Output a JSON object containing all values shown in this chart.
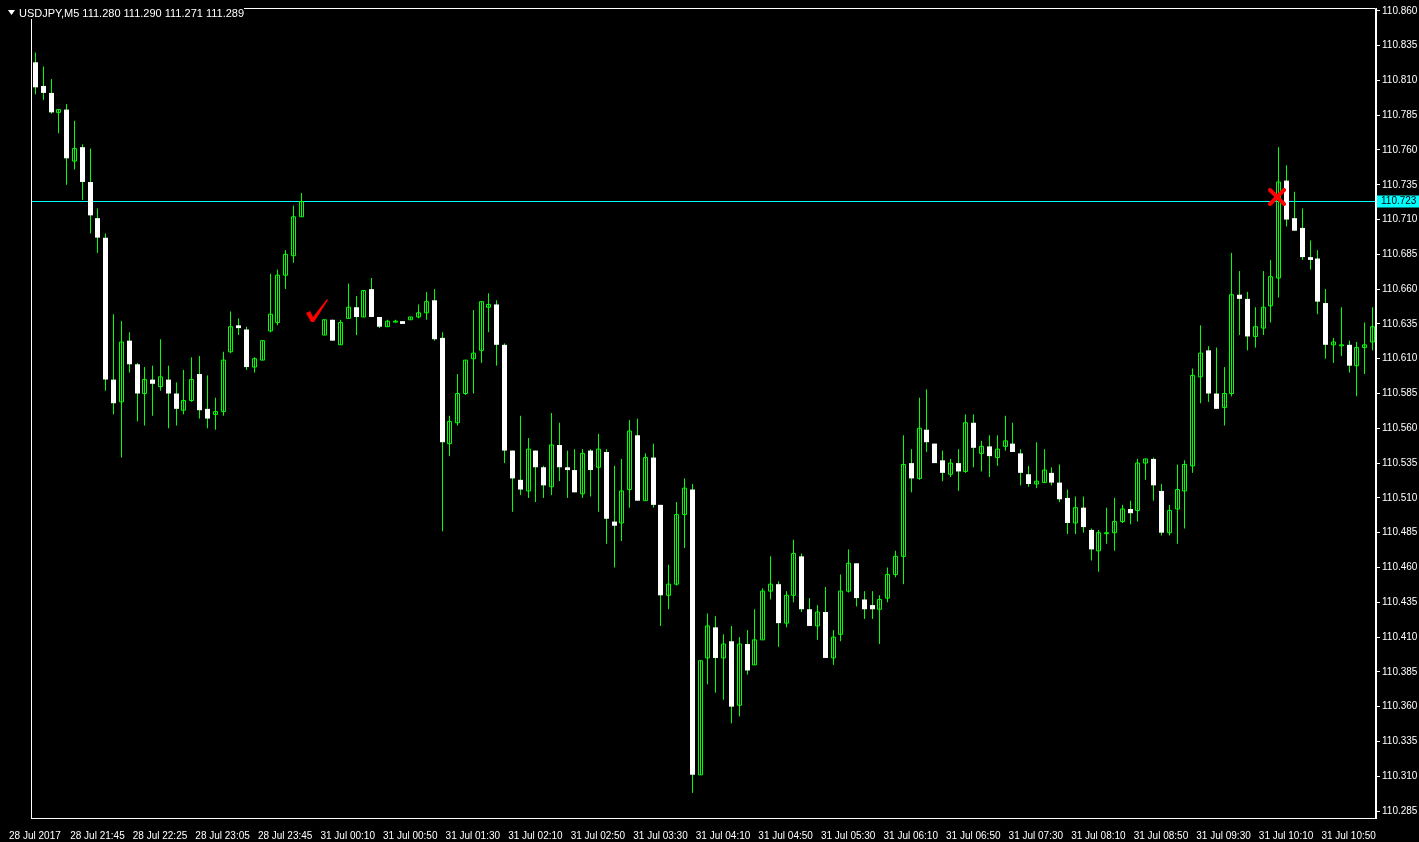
{
  "chart_data": {
    "type": "candlestick",
    "title": "USDJPY,M5 111.280 111.290 111.271 111.289",
    "color": "#00ff00",
    "colors": [
      "#ffffff",
      "#ffffff",
      "#ffffff",
      "#00ff00",
      "#ffffff",
      "#00ff00",
      "#ffffff",
      "#ffffff",
      "#ffffff",
      "#ffffff",
      "#ffffff",
      "#00ff00",
      "#ffffff",
      "#ffffff",
      "#00ff00",
      "#ffffff",
      "#00ff00",
      "#ffffff",
      "#ffffff",
      "#00ff00",
      "#00ff00",
      "#ffffff",
      "#ffffff",
      "#00ff00",
      "#00ff00",
      "#00ff00",
      "#ffffff",
      "#ffffff",
      "#00ff00",
      "#00ff00",
      "#00ff00",
      "#00ff00",
      "#00ff00",
      "#00ff00",
      "#00ff00",
      null,
      null,
      "#00ff00",
      "#ffffff",
      "#00ff00",
      "#00ff00",
      "#ffffff",
      "#00ff00",
      "#ffffff",
      "#ffffff",
      "#00ff00",
      "#00ff00",
      "#ffffff",
      "#00ff00",
      "#00ff00",
      "#00ff00",
      "#ffffff",
      "#ffffff",
      "#00ff00",
      "#00ff00",
      "#00ff00",
      "#00ff00",
      "#00ff00",
      "#00ff00",
      "#ffffff",
      "#ffffff",
      "#ffffff",
      "#ffffff",
      "#00ff00",
      "#ffffff",
      "#ffffff",
      "#00ff00",
      "#ffffff",
      "#ffffff",
      "#ffffff",
      "#00ff00",
      "#ffffff",
      "#00ff00",
      "#ffffff",
      "#ffffff",
      "#00ff00",
      "#00ff00",
      "#ffffff",
      "#00ff00",
      "#ffffff",
      "#ffffff",
      "#00ff00",
      "#00ff00",
      "#00ff00",
      "#ffffff",
      "#00ff00",
      "#00ff00",
      "#ffffff",
      "#00ff00",
      "#ffffff",
      "#00ff00",
      "#ffffff",
      "#00ff00",
      "#00ff00",
      "#00ff00",
      "#ffffff",
      "#00ff00",
      "#00ff00",
      "#ffffff",
      "#ffffff",
      "#00ff00",
      "#ffffff",
      "#00ff00",
      "#00ff00",
      "#00ff00",
      "#ffffff",
      "#ffffff",
      "#ffffff",
      "#00ff00",
      "#00ff00",
      "#00ff00",
      "#00ff00",
      "#ffffff",
      "#00ff00",
      "#ffffff",
      "#ffffff",
      "#ffffff",
      "#00ff00",
      "#ffffff",
      "#00ff00",
      "#ffffff",
      "#00ff00",
      "#ffffff",
      "#00ff00",
      "#00ff00",
      "#ffffff",
      "#ffffff",
      "#ffffff",
      "#00ff00",
      "#00ff00",
      "#ffffff",
      "#ffffff",
      "#ffffff",
      "#00ff00",
      "#ffffff",
      "#ffffff",
      "#00ff00",
      "#00ff00",
      "#00ff00",
      "#00ff00",
      "#ffffff",
      "#00ff00",
      "#00ff00",
      "#ffffff",
      "#ffffff",
      "#00ff00",
      "#00ff00",
      "#00ff00",
      "#00ff00",
      "#00ff00",
      "#ffffff",
      "#ffffff",
      "#00ff00",
      "#00ff00",
      "#ffffff",
      "#ffffff",
      "#00ff00",
      "#00ff00",
      "#00ff00",
      "#00ff00",
      "#ffffff",
      "#ffffff",
      "#ffffff",
      "#ffffff",
      "#ffffff",
      "#ffffff",
      "#00ff00",
      "#00ff00",
      "#ffffff",
      "#00ff00",
      "#00ff00",
      "#00ff00"
    ],
    "ylim": [
      110.28,
      110.862
    ],
    "yticks": [
      110.285,
      {
        "value": 110.31,
        "label": "110.310"
      },
      110.335,
      {
        "value": 110.36,
        "label": "110.360"
      },
      110.385,
      {
        "value": 110.41,
        "label": "110.410"
      },
      110.435,
      {
        "value": 110.46,
        "label": "110.460"
      },
      110.485,
      {
        "value": 110.51,
        "label": "110.510"
      },
      110.535,
      {
        "value": 110.56,
        "label": "110.560"
      },
      110.585,
      {
        "value": 110.61,
        "label": "110.610"
      },
      110.635,
      {
        "value": 110.66,
        "label": "110.660"
      },
      110.685,
      {
        "value": 110.71,
        "label": "110.710"
      },
      110.735,
      {
        "value": 110.76,
        "label": "110.760"
      },
      110.785,
      {
        "value": 110.81,
        "label": "110.810"
      },
      110.835,
      {
        "value": 110.86,
        "label": "110.860"
      }
    ],
    "ref_lines": [
      {
        "axis": "y",
        "value": 110.723,
        "label": "110.723",
        "color": "#00ffff"
      }
    ],
    "categories": [
      "28 Jul 2017",
      null,
      null,
      null,
      null,
      null,
      null,
      null,
      "28 Jul 21:45",
      null,
      null,
      null,
      null,
      null,
      null,
      null,
      "28 Jul 22:25",
      null,
      null,
      null,
      null,
      null,
      null,
      null,
      "28 Jul 23:05",
      null,
      null,
      null,
      null,
      null,
      null,
      null,
      "28 Jul 23:45",
      null,
      null,
      null,
      null,
      null,
      null,
      null,
      "31 Jul 00:10",
      null,
      null,
      null,
      null,
      null,
      null,
      null,
      "31 Jul 00:50",
      null,
      null,
      null,
      null,
      null,
      null,
      null,
      "31 Jul 01:30",
      null,
      null,
      null,
      null,
      null,
      null,
      null,
      "31 Jul 02:10",
      null,
      null,
      null,
      null,
      null,
      null,
      null,
      "31 Jul 02:50",
      null,
      null,
      null,
      null,
      null,
      null,
      null,
      "31 Jul 03:30",
      null,
      null,
      null,
      null,
      null,
      null,
      null,
      "31 Jul 04:10",
      null,
      null,
      null,
      null,
      null,
      null,
      null,
      "31 Jul 04:50",
      null,
      null,
      null,
      null,
      null,
      null,
      null,
      "31 Jul 05:30",
      null,
      null,
      null,
      null,
      null,
      null,
      null,
      "31 Jul 06:10",
      null,
      null,
      null,
      null,
      null,
      null,
      null,
      "31 Jul 06:50",
      null,
      null,
      null,
      null,
      null,
      null,
      null,
      "31 Jul 07:30",
      null,
      null,
      null,
      null,
      null,
      null,
      null,
      "31 Jul 08:10",
      null,
      null,
      null,
      null,
      null,
      null,
      null,
      "31 Jul 08:50",
      null,
      null,
      null,
      null,
      null,
      null,
      null,
      "31 Jul 09:30",
      null,
      null,
      null,
      null,
      null,
      null,
      null,
      "31 Jul 10:10",
      null,
      null,
      null,
      null,
      null,
      null,
      null,
      "31 Jul 10:50",
      null,
      null,
      null
    ],
    "ohlc": [
      [
        110.823,
        110.83,
        110.8,
        110.805
      ],
      [
        110.806,
        110.82,
        110.796,
        110.801
      ],
      [
        110.801,
        110.811,
        110.786,
        110.787
      ],
      [
        110.787,
        110.789,
        110.772,
        110.789
      ],
      [
        110.789,
        110.793,
        110.735,
        110.754
      ],
      [
        110.752,
        110.781,
        110.746,
        110.761
      ],
      [
        110.762,
        110.764,
        110.724,
        110.737
      ],
      [
        110.737,
        110.761,
        110.7,
        110.713
      ],
      [
        110.711,
        110.718,
        110.686,
        110.697
      ],
      [
        110.697,
        110.7,
        110.587,
        110.595
      ],
      [
        110.595,
        110.642,
        110.57,
        110.578
      ],
      [
        110.579,
        110.637,
        110.539,
        110.622
      ],
      [
        110.623,
        110.629,
        110.6,
        110.606
      ],
      [
        110.606,
        110.607,
        110.565,
        110.585
      ],
      [
        110.585,
        110.604,
        110.562,
        110.595
      ],
      [
        110.595,
        110.605,
        110.569,
        110.592
      ],
      [
        110.59,
        110.624,
        110.587,
        110.597
      ],
      [
        110.595,
        110.605,
        110.56,
        110.585
      ],
      [
        110.585,
        110.593,
        110.562,
        110.574
      ],
      [
        110.573,
        110.602,
        110.57,
        110.58
      ],
      [
        110.58,
        110.611,
        110.579,
        110.595
      ],
      [
        110.599,
        110.612,
        110.567,
        110.573
      ],
      [
        110.574,
        110.598,
        110.56,
        110.567
      ],
      [
        110.57,
        110.582,
        110.559,
        110.572
      ],
      [
        110.572,
        110.615,
        110.569,
        110.609
      ],
      [
        110.615,
        110.644,
        110.614,
        110.633
      ],
      [
        110.634,
        110.639,
        110.627,
        110.632
      ],
      [
        110.631,
        110.633,
        110.602,
        110.604
      ],
      [
        110.604,
        110.611,
        110.6,
        110.61
      ],
      [
        110.609,
        110.623,
        110.609,
        110.623
      ],
      [
        110.63,
        110.671,
        110.629,
        110.642
      ],
      [
        110.636,
        110.674,
        110.634,
        110.67
      ],
      [
        110.67,
        110.688,
        110.66,
        110.685
      ],
      [
        110.684,
        110.72,
        110.679,
        110.712
      ],
      [
        110.712,
        110.729,
        110.712,
        110.723
      ],
      null,
      null,
      [
        110.627,
        110.638,
        110.627,
        110.638
      ],
      [
        110.638,
        110.638,
        110.623,
        110.623
      ],
      [
        110.62,
        110.638,
        110.62,
        110.636
      ],
      [
        110.639,
        110.664,
        110.639,
        110.647
      ],
      [
        110.647,
        110.655,
        110.627,
        110.64
      ],
      [
        110.64,
        110.659,
        110.64,
        110.659
      ],
      [
        110.66,
        110.668,
        110.64,
        110.64
      ],
      [
        110.64,
        110.64,
        110.632,
        110.633
      ],
      [
        110.633,
        110.638,
        110.633,
        110.637
      ],
      [
        110.637,
        110.638,
        110.636,
        110.637
      ],
      [
        110.637,
        110.637,
        110.635,
        110.635
      ],
      [
        110.638,
        110.64,
        110.638,
        110.64
      ],
      [
        110.64,
        110.649,
        110.639,
        110.643
      ],
      [
        110.643,
        110.658,
        110.638,
        110.651
      ],
      [
        110.652,
        110.66,
        110.623,
        110.624
      ],
      [
        110.625,
        110.629,
        110.486,
        110.55
      ],
      [
        110.549,
        110.569,
        110.54,
        110.565
      ],
      [
        110.564,
        110.599,
        110.562,
        110.585
      ],
      [
        110.585,
        110.609,
        110.584,
        110.609
      ],
      [
        110.61,
        110.645,
        110.585,
        110.614
      ],
      [
        110.616,
        110.651,
        110.607,
        110.651
      ],
      [
        110.647,
        110.657,
        110.629,
        110.649
      ],
      [
        110.649,
        110.652,
        110.605,
        110.62
      ],
      [
        110.62,
        110.621,
        110.535,
        110.544
      ],
      [
        110.544,
        110.544,
        110.5,
        110.524
      ],
      [
        110.523,
        110.569,
        110.512,
        110.516
      ],
      [
        110.515,
        110.553,
        110.51,
        110.545
      ],
      [
        110.544,
        110.544,
        110.507,
        110.532
      ],
      [
        110.532,
        110.533,
        110.51,
        110.519
      ],
      [
        110.518,
        110.571,
        110.512,
        110.548
      ],
      [
        110.548,
        110.564,
        110.522,
        110.532
      ],
      [
        110.532,
        110.544,
        110.51,
        110.53
      ],
      [
        110.53,
        110.545,
        110.514,
        110.514
      ],
      [
        110.513,
        110.545,
        110.51,
        110.542
      ],
      [
        110.544,
        110.545,
        110.511,
        110.53
      ],
      [
        110.532,
        110.556,
        110.5,
        110.545
      ],
      [
        110.543,
        110.545,
        110.477,
        110.495
      ],
      [
        110.493,
        110.533,
        110.46,
        110.49
      ],
      [
        110.492,
        110.538,
        110.479,
        110.515
      ],
      [
        110.516,
        110.566,
        110.503,
        110.558
      ],
      [
        110.555,
        110.567,
        110.508,
        110.508
      ],
      [
        110.508,
        110.542,
        110.508,
        110.539
      ],
      [
        110.539,
        110.549,
        110.503,
        110.505
      ],
      [
        110.505,
        110.505,
        110.418,
        110.44
      ],
      [
        110.44,
        110.462,
        110.43,
        110.448
      ],
      [
        110.448,
        110.507,
        110.447,
        110.498
      ],
      [
        110.498,
        110.524,
        110.474,
        110.517
      ],
      [
        110.516,
        110.52,
        110.298,
        110.311
      ],
      [
        110.311,
        110.393,
        110.311,
        110.393
      ],
      [
        110.395,
        110.427,
        110.376,
        110.418
      ],
      [
        110.417,
        110.425,
        110.37,
        110.395
      ],
      [
        110.395,
        110.412,
        110.365,
        110.405
      ],
      [
        110.407,
        110.418,
        110.348,
        110.36
      ],
      [
        110.361,
        110.41,
        110.353,
        110.405
      ],
      [
        110.405,
        110.415,
        110.383,
        110.386
      ],
      [
        110.39,
        110.43,
        110.39,
        110.408
      ],
      [
        110.408,
        110.445,
        110.408,
        110.443
      ],
      [
        110.443,
        110.468,
        110.437,
        110.448
      ],
      [
        110.448,
        110.45,
        110.403,
        110.42
      ],
      [
        110.42,
        110.443,
        110.417,
        110.44
      ],
      [
        110.44,
        110.48,
        110.435,
        110.47
      ],
      [
        110.468,
        110.47,
        110.428,
        110.43
      ],
      [
        110.43,
        110.438,
        110.418,
        110.418
      ],
      [
        110.418,
        110.433,
        110.408,
        110.428
      ],
      [
        110.428,
        110.446,
        110.395,
        110.395
      ],
      [
        110.395,
        110.415,
        110.39,
        110.41
      ],
      [
        110.412,
        110.455,
        110.407,
        110.443
      ],
      [
        110.443,
        110.473,
        110.442,
        110.463
      ],
      [
        110.463,
        110.463,
        110.432,
        110.438
      ],
      [
        110.437,
        110.443,
        110.423,
        110.43
      ],
      [
        110.433,
        110.443,
        110.423,
        110.43
      ],
      [
        110.43,
        110.44,
        110.405,
        110.437
      ],
      [
        110.438,
        110.46,
        110.435,
        110.455
      ],
      [
        110.455,
        110.472,
        110.453,
        110.468
      ],
      [
        110.468,
        110.555,
        110.448,
        110.534
      ],
      [
        110.535,
        110.545,
        110.514,
        110.524
      ],
      [
        110.524,
        110.582,
        110.523,
        110.56
      ],
      [
        110.559,
        110.588,
        110.543,
        110.55
      ],
      [
        110.549,
        110.549,
        110.535,
        110.535
      ],
      [
        110.537,
        110.544,
        110.522,
        110.528
      ],
      [
        110.527,
        110.538,
        110.525,
        110.535
      ],
      [
        110.535,
        110.545,
        110.515,
        110.529
      ],
      [
        110.529,
        110.57,
        110.528,
        110.564
      ],
      [
        110.564,
        110.57,
        110.532,
        110.546
      ],
      [
        110.542,
        110.551,
        110.529,
        110.547
      ],
      [
        110.547,
        110.555,
        110.525,
        110.54
      ],
      [
        110.539,
        110.555,
        110.533,
        110.545
      ],
      [
        110.547,
        110.569,
        110.544,
        110.551
      ],
      [
        110.549,
        110.564,
        110.543,
        110.543
      ],
      [
        110.542,
        110.545,
        110.519,
        110.528
      ],
      [
        110.527,
        110.533,
        110.518,
        110.52
      ],
      [
        110.52,
        110.55,
        110.517,
        110.522
      ],
      [
        110.521,
        110.545,
        110.521,
        110.53
      ],
      [
        110.528,
        110.532,
        110.519,
        110.521
      ],
      [
        110.521,
        110.534,
        110.507,
        110.509
      ],
      [
        110.51,
        110.516,
        110.484,
        110.492
      ],
      [
        110.492,
        110.511,
        110.484,
        110.503
      ],
      [
        110.503,
        110.511,
        110.485,
        110.489
      ],
      [
        110.487,
        110.488,
        110.465,
        110.473
      ],
      [
        110.472,
        110.487,
        110.457,
        110.485
      ],
      [
        110.485,
        110.503,
        110.477,
        110.485
      ],
      [
        110.485,
        110.51,
        110.472,
        110.493
      ],
      [
        110.493,
        110.505,
        110.492,
        110.502
      ],
      [
        110.502,
        110.508,
        110.491,
        110.499
      ],
      [
        110.501,
        110.538,
        110.493,
        110.535
      ],
      [
        110.535,
        110.538,
        110.523,
        110.538
      ],
      [
        110.538,
        110.539,
        110.508,
        110.519
      ],
      [
        110.515,
        110.52,
        110.483,
        110.485
      ],
      [
        110.485,
        110.505,
        110.483,
        110.501
      ],
      [
        110.502,
        110.534,
        110.477,
        110.516
      ],
      [
        110.515,
        110.537,
        110.488,
        110.534
      ],
      [
        110.533,
        110.603,
        110.528,
        110.598
      ],
      [
        110.597,
        110.634,
        110.578,
        110.614
      ],
      [
        110.616,
        110.619,
        110.579,
        110.585
      ],
      [
        110.585,
        110.618,
        110.574,
        110.574
      ],
      [
        110.575,
        110.604,
        110.562,
        110.585
      ],
      [
        110.585,
        110.686,
        110.583,
        110.656
      ],
      [
        110.656,
        110.673,
        110.627,
        110.653
      ],
      [
        110.653,
        110.658,
        110.616,
        110.626
      ],
      [
        110.626,
        110.647,
        110.618,
        110.633
      ],
      [
        110.632,
        110.673,
        110.627,
        110.647
      ],
      [
        110.648,
        110.681,
        110.636,
        110.669
      ],
      [
        110.668,
        110.762,
        110.654,
        110.737
      ],
      [
        110.738,
        110.749,
        110.705,
        110.71
      ],
      [
        110.711,
        110.73,
        110.702,
        110.702
      ],
      [
        110.704,
        110.718,
        110.681,
        110.683
      ],
      [
        110.683,
        110.695,
        110.674,
        110.681
      ],
      [
        110.682,
        110.688,
        110.642,
        110.651
      ],
      [
        110.65,
        110.66,
        110.61,
        110.62
      ],
      [
        110.62,
        110.625,
        110.607,
        110.622
      ],
      [
        110.62,
        110.647,
        110.612,
        110.62
      ],
      [
        110.62,
        110.623,
        110.6,
        110.605
      ],
      [
        110.605,
        110.622,
        110.583,
        110.618
      ],
      [
        110.618,
        110.636,
        110.599,
        110.62
      ],
      [
        110.622,
        110.647,
        110.616,
        110.633
      ]
    ]
  }
}
